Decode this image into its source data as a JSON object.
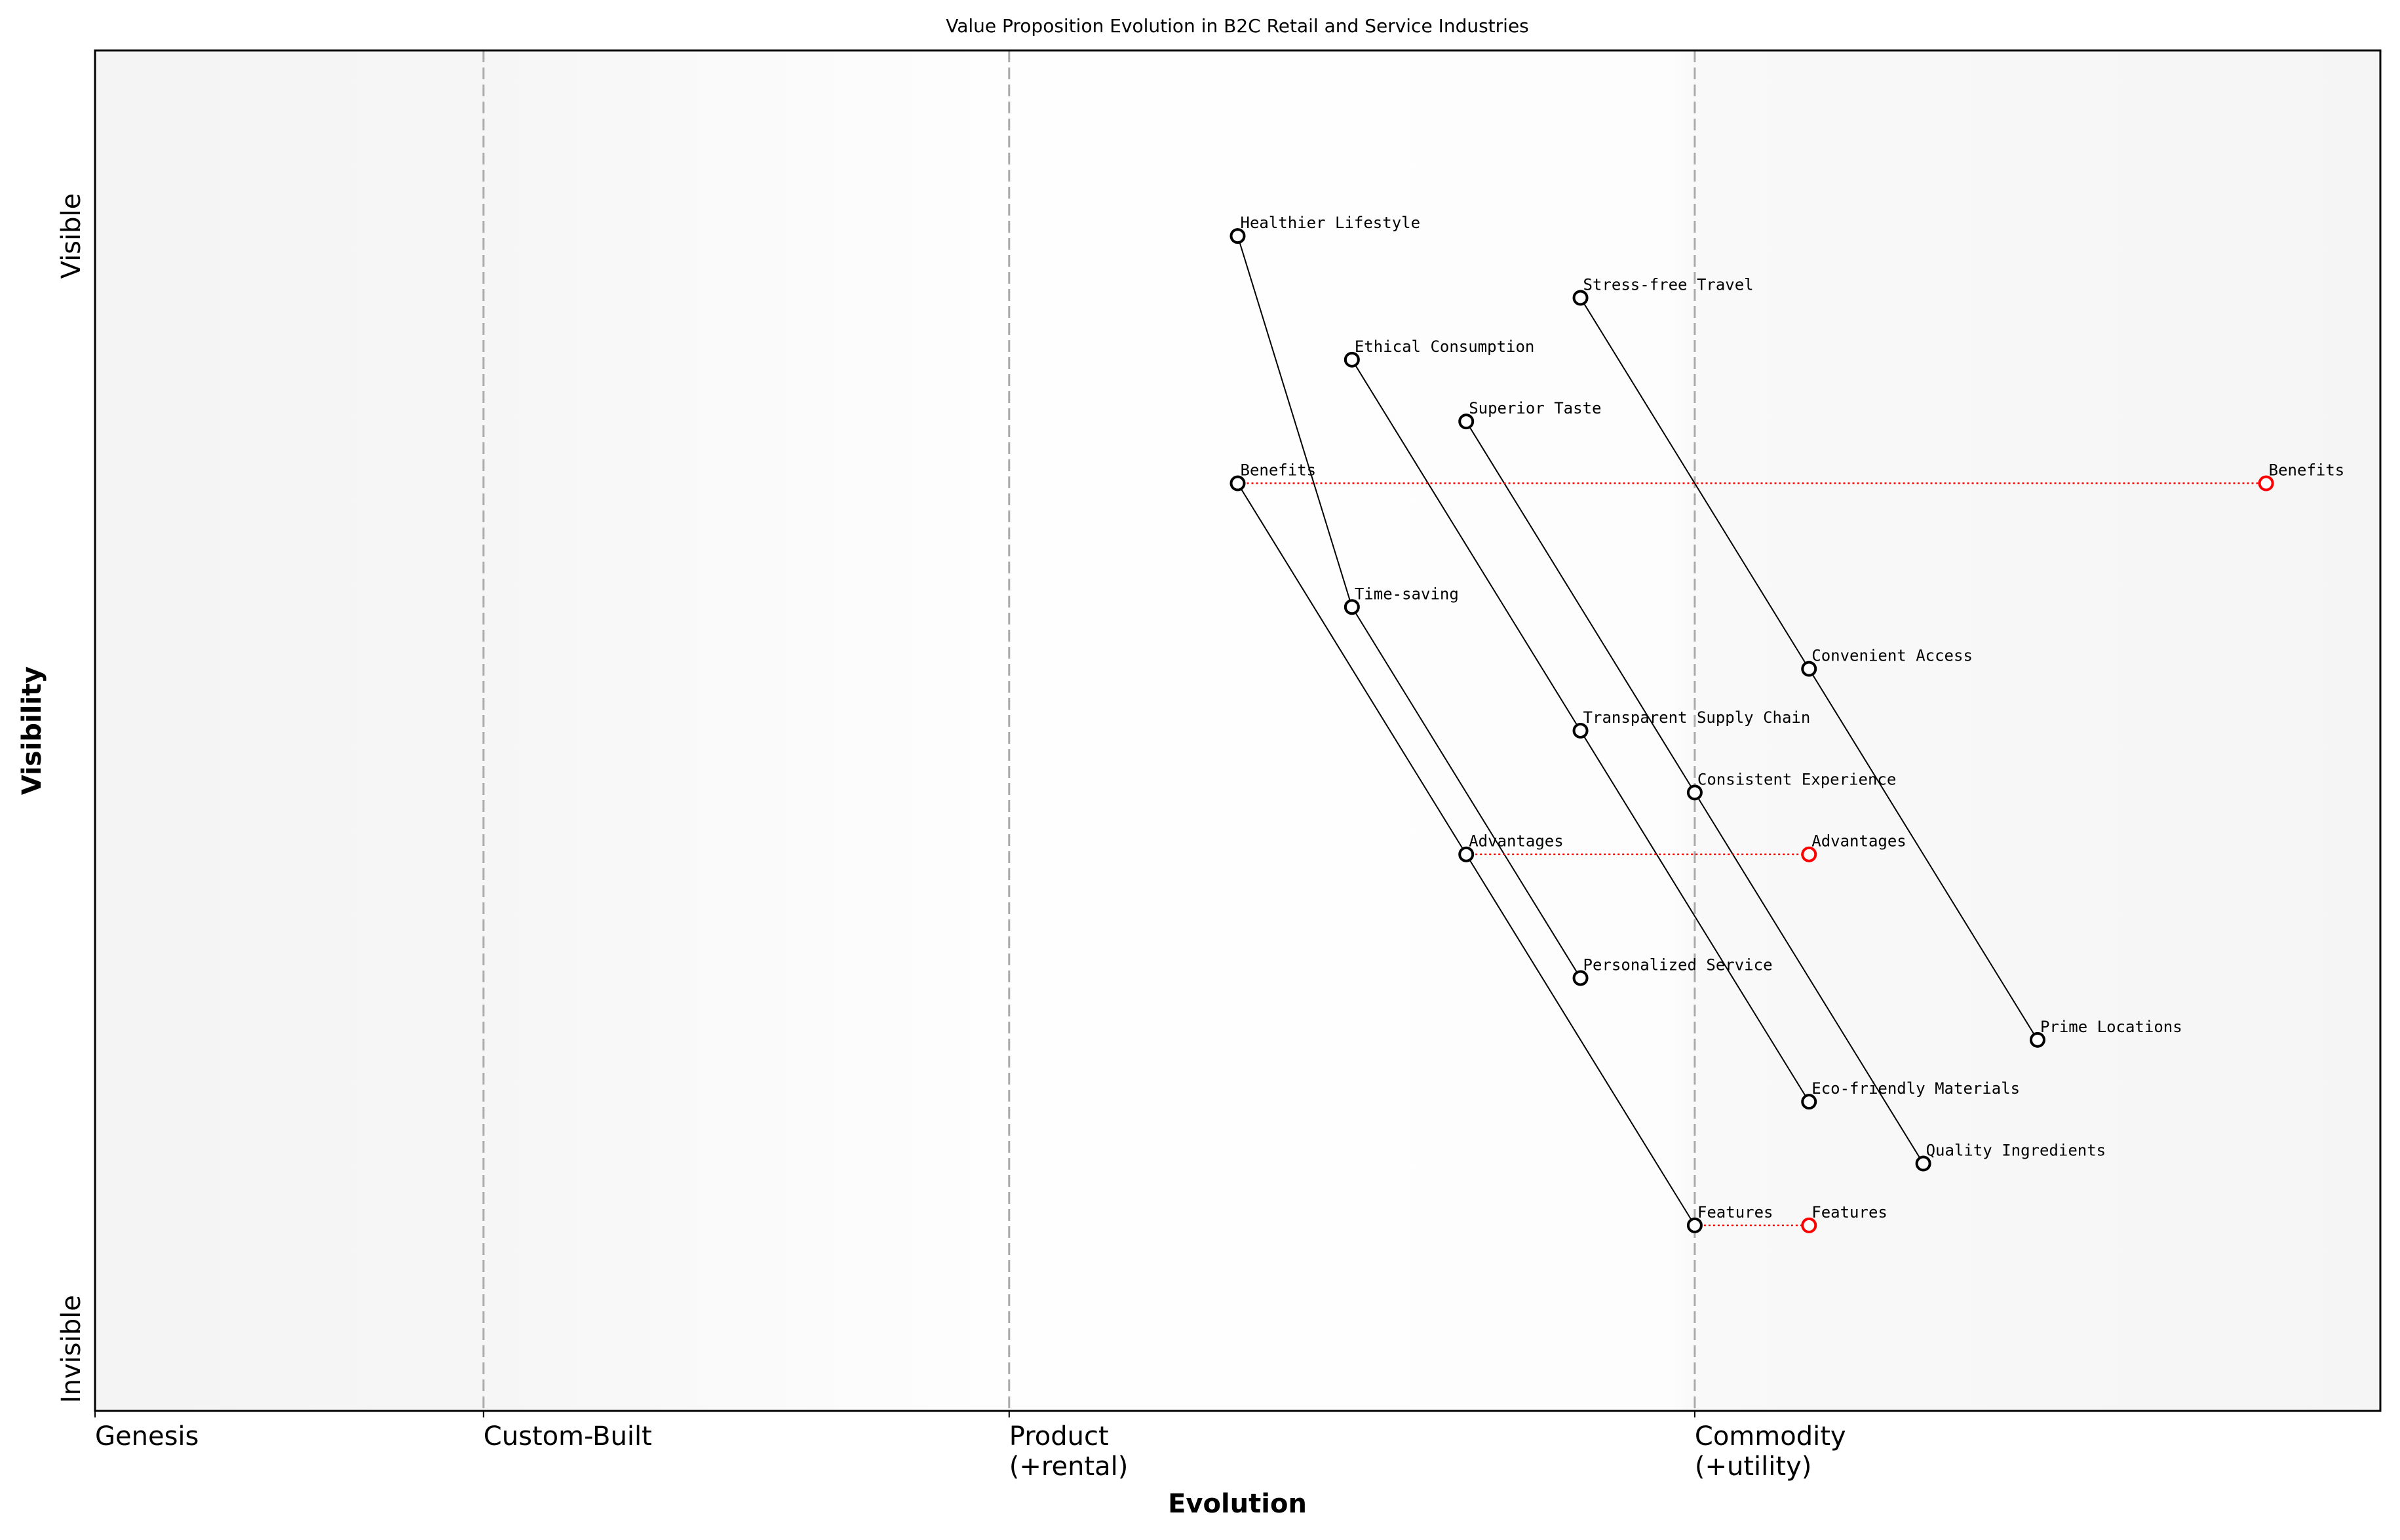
{
  "chart_data": {
    "type": "scatter",
    "title": "Value Proposition Evolution in B2C Retail and Service Industries",
    "xlabel": "Evolution",
    "ylabel": "Visibility",
    "xlim": [
      0,
      1
    ],
    "ylim": [
      0,
      1.1
    ],
    "grid": false,
    "x_stages": [
      {
        "label": "Genesis",
        "x": 0
      },
      {
        "label": "Custom-Built",
        "x": 0.17
      },
      {
        "label": "Product\n(+rental)",
        "x": 0.4
      },
      {
        "label": "Commodity\n(+utility)",
        "x": 0.7
      }
    ],
    "y_ticks": [
      {
        "label": "Visible",
        "y": 0.95
      },
      {
        "label": "Invisible",
        "y": 0.05
      }
    ],
    "components": [
      {
        "name": "Healthier Lifestyle",
        "x": 0.5,
        "y": 0.95
      },
      {
        "name": "Stress-free Travel",
        "x": 0.65,
        "y": 0.9
      },
      {
        "name": "Ethical Consumption",
        "x": 0.55,
        "y": 0.85
      },
      {
        "name": "Superior Taste",
        "x": 0.6,
        "y": 0.8
      },
      {
        "name": "Benefits",
        "x": 0.5,
        "y": 0.75
      },
      {
        "name": "Time-saving",
        "x": 0.55,
        "y": 0.65
      },
      {
        "name": "Convenient Access",
        "x": 0.75,
        "y": 0.6
      },
      {
        "name": "Transparent Supply Chain",
        "x": 0.65,
        "y": 0.55
      },
      {
        "name": "Consistent Experience",
        "x": 0.7,
        "y": 0.5
      },
      {
        "name": "Advantages",
        "x": 0.6,
        "y": 0.45
      },
      {
        "name": "Personalized Service",
        "x": 0.65,
        "y": 0.35
      },
      {
        "name": "Prime Locations",
        "x": 0.85,
        "y": 0.3
      },
      {
        "name": "Eco-friendly Materials",
        "x": 0.75,
        "y": 0.25
      },
      {
        "name": "Quality Ingredients",
        "x": 0.8,
        "y": 0.2
      },
      {
        "name": "Features",
        "x": 0.7,
        "y": 0.15
      }
    ],
    "evolved_components": [
      {
        "name": "Benefits",
        "x": 0.95,
        "y": 0.75
      },
      {
        "name": "Advantages",
        "x": 0.75,
        "y": 0.45
      },
      {
        "name": "Features",
        "x": 0.75,
        "y": 0.15
      }
    ],
    "links": [
      [
        "Healthier Lifestyle",
        "Time-saving"
      ],
      [
        "Time-saving",
        "Personalized Service"
      ],
      [
        "Stress-free Travel",
        "Convenient Access"
      ],
      [
        "Convenient Access",
        "Prime Locations"
      ],
      [
        "Ethical Consumption",
        "Transparent Supply Chain"
      ],
      [
        "Transparent Supply Chain",
        "Eco-friendly Materials"
      ],
      [
        "Superior Taste",
        "Consistent Experience"
      ],
      [
        "Consistent Experience",
        "Quality Ingredients"
      ],
      [
        "Benefits",
        "Advantages"
      ],
      [
        "Advantages",
        "Features"
      ]
    ],
    "colors": {
      "component": "#000000",
      "evolved": "#ff0000",
      "stage_line": "#aaaaaa"
    }
  }
}
